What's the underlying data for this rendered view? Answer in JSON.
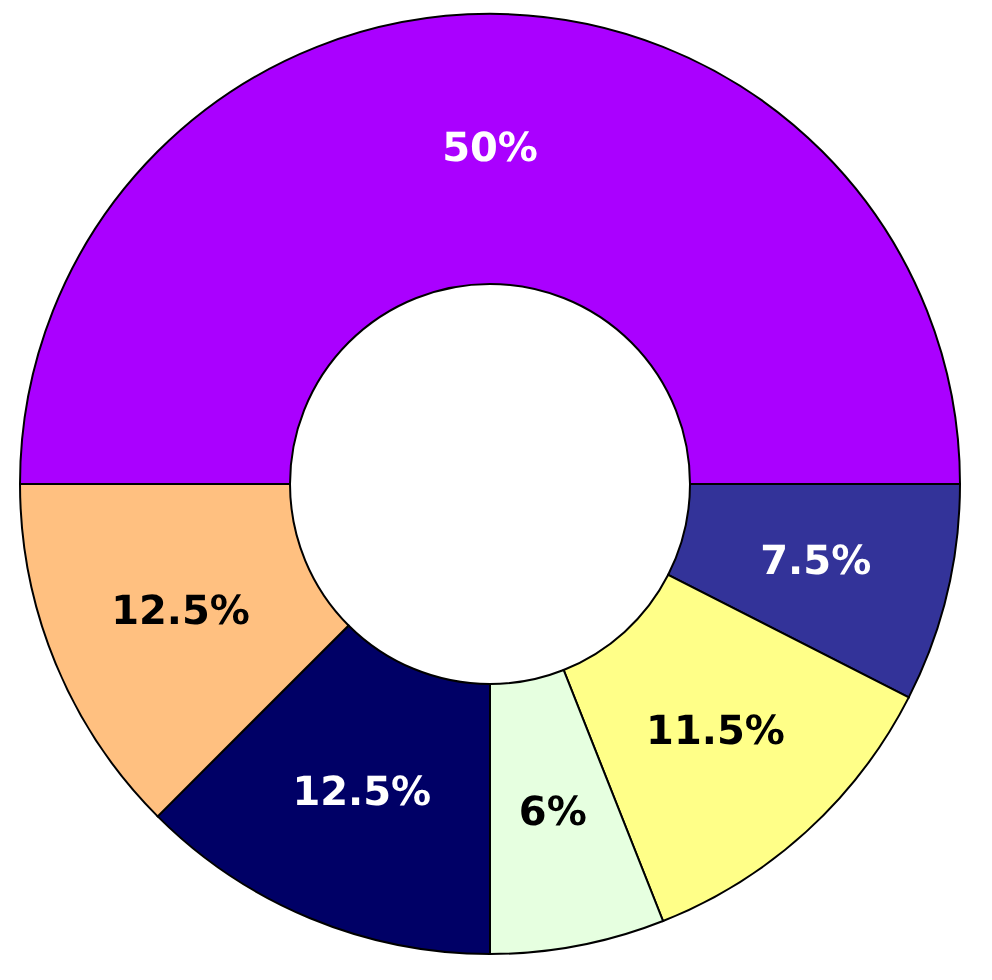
{
  "chart_data": {
    "type": "donut",
    "categories": [
      null,
      null,
      null,
      null,
      null,
      null
    ],
    "values": [
      50,
      7.5,
      11.5,
      6,
      12.5,
      12.5
    ],
    "value_labels": [
      "50%",
      "7.5%",
      "11.5%",
      "6%",
      "12.5%",
      "12.5%"
    ],
    "colors": [
      "#aa00ff",
      "#333399",
      "#ffff88",
      "#e6ffe0",
      "#000066",
      "#ffc080"
    ],
    "legend": false
  }
}
